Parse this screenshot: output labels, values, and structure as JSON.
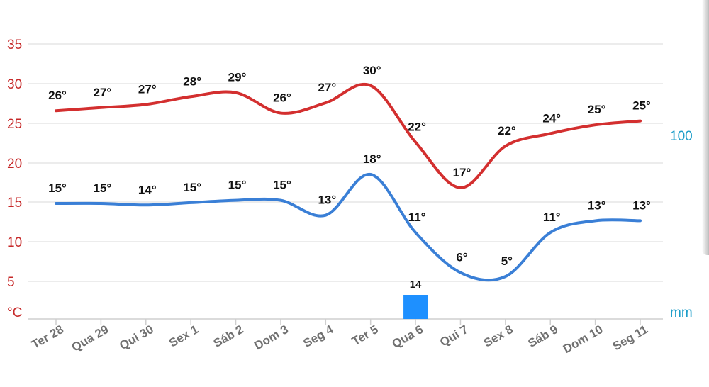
{
  "chart_data": {
    "type": "line",
    "categories": [
      "Ter 28",
      "Qua 29",
      "Qui 30",
      "Sex 1",
      "Sáb 2",
      "Dom 3",
      "Seg 4",
      "Ter 5",
      "Qua 6",
      "Qui 7",
      "Sex 8",
      "Sáb 9",
      "Dom 10",
      "Seg 11"
    ],
    "series": [
      {
        "name": "max",
        "color": "#d32f2f",
        "values": [
          26.5,
          26.9,
          27.3,
          28.3,
          28.8,
          26.2,
          27.5,
          29.7,
          22.5,
          16.7,
          22.0,
          23.6,
          24.7,
          25.2
        ],
        "labels": [
          "26°",
          "27°",
          "27°",
          "28°",
          "29°",
          "26°",
          "27°",
          "30°",
          "22°",
          "17°",
          "22°",
          "24°",
          "25°",
          "25°"
        ]
      },
      {
        "name": "min",
        "color": "#3a7fd6",
        "values": [
          14.7,
          14.7,
          14.5,
          14.8,
          15.1,
          15.1,
          13.2,
          18.4,
          11.0,
          5.9,
          5.4,
          11.0,
          12.5,
          12.5
        ],
        "labels": [
          "15°",
          "15°",
          "14°",
          "15°",
          "15°",
          "15°",
          "13°",
          "18°",
          "11°",
          "6°",
          "5°",
          "11°",
          "13°",
          "13°"
        ]
      }
    ],
    "precipitation": {
      "unit": "mm",
      "values": [
        0,
        0,
        0,
        0,
        0,
        0,
        0,
        0,
        14,
        0,
        0,
        0,
        0,
        0
      ],
      "labels": [
        "",
        "",
        "",
        "",
        "",
        "",
        "",
        "",
        "14",
        "",
        "",
        "",
        "",
        ""
      ],
      "color": "#1e90ff"
    },
    "y_left": {
      "unit": "°C",
      "ticks": [
        "35",
        "30",
        "25",
        "20",
        "15",
        "10",
        "5"
      ],
      "range": [
        0,
        37.4
      ]
    },
    "y_right": {
      "unit": "mm",
      "ticks": [
        "100"
      ]
    }
  }
}
